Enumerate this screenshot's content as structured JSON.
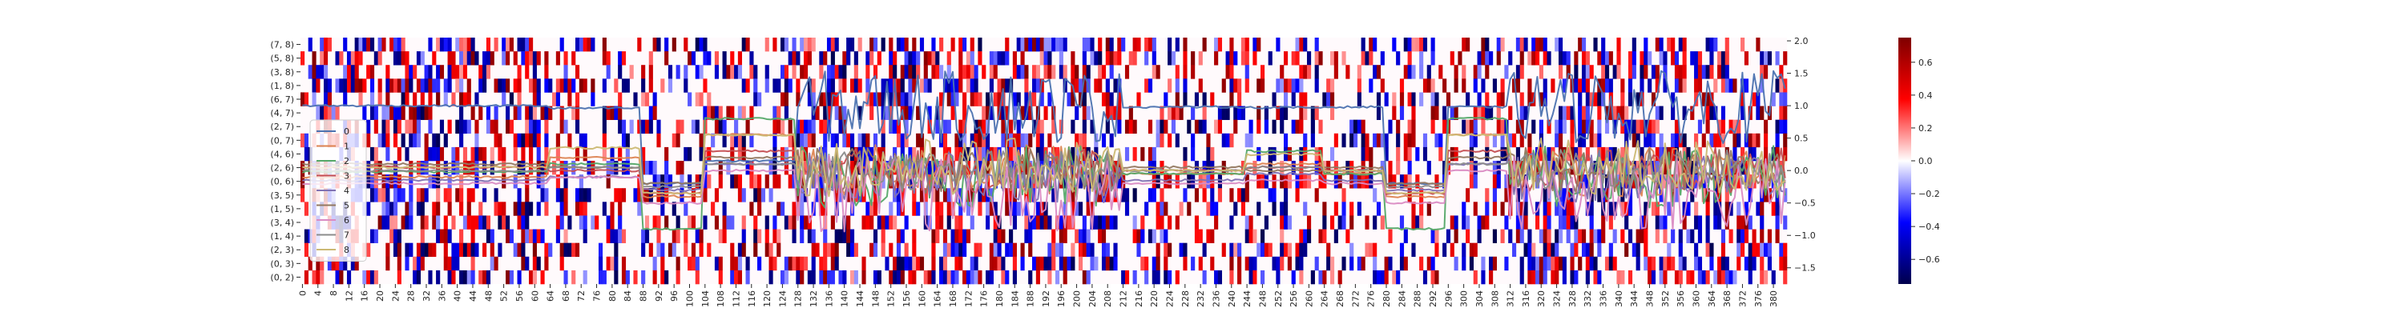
{
  "chart_data": {
    "type": "heatmap",
    "title": "",
    "xlabel": "",
    "ylabel": "",
    "heatmap": {
      "rows": [
        "(7, 8)",
        "(5, 8)",
        "(3, 8)",
        "(1, 8)",
        "(6, 7)",
        "(4, 7)",
        "(2, 7)",
        "(0, 7)",
        "(4, 6)",
        "(2, 6)",
        "(0, 6)",
        "(3, 5)",
        "(1, 5)",
        "(3, 4)",
        "(1, 4)",
        "(2, 3)",
        "(0, 3)",
        "(0, 2)"
      ],
      "columns": {
        "start": 0,
        "end": 383,
        "label_step": 4
      },
      "column_labels": [
        "0",
        "4",
        "8",
        "12",
        "16",
        "20",
        "24",
        "28",
        "32",
        "36",
        "40",
        "44",
        "48",
        "52",
        "56",
        "60",
        "64",
        "68",
        "72",
        "76",
        "80",
        "84",
        "88",
        "92",
        "96",
        "100",
        "104",
        "108",
        "112",
        "116",
        "120",
        "124",
        "128",
        "132",
        "136",
        "140",
        "144",
        "148",
        "152",
        "156",
        "160",
        "164",
        "168",
        "172",
        "176",
        "180",
        "184",
        "188",
        "192",
        "196",
        "200",
        "204",
        "208",
        "212",
        "216",
        "220",
        "224",
        "228",
        "232",
        "236",
        "240",
        "244",
        "248",
        "252",
        "256",
        "260",
        "264",
        "268",
        "272",
        "276",
        "280",
        "284",
        "288",
        "292",
        "296",
        "300",
        "304",
        "308",
        "312",
        "316",
        "320",
        "324",
        "328",
        "332",
        "336",
        "340",
        "344",
        "348",
        "352",
        "356",
        "360",
        "364",
        "368",
        "372",
        "376",
        "380"
      ],
      "color_range": [
        -0.75,
        0.75
      ],
      "colormap": "seismic",
      "sparsity": "most cells near 0 (white); scattered cells with |value| 0.2-0.75",
      "seed": 7
    },
    "colorbar": {
      "ticks": [
        "0.6",
        "0.4",
        "0.2",
        "0.0",
        "−0.2",
        "−0.4",
        "−0.6"
      ],
      "tick_values": [
        0.6,
        0.4,
        0.2,
        0.0,
        -0.2,
        -0.4,
        -0.6
      ]
    },
    "overlay": {
      "type": "line",
      "x_range": [
        0,
        383
      ],
      "y_ticks": [
        "2.0",
        "1.5",
        "1.0",
        "0.5",
        "0.0",
        "−0.5",
        "−1.0",
        "−1.5"
      ],
      "y_tick_values": [
        2.0,
        1.5,
        1.0,
        0.5,
        0.0,
        -0.5,
        -1.0,
        -1.5
      ],
      "ylim": [
        -1.75,
        2.05
      ],
      "segment_boundaries": [
        0,
        64,
        88,
        104,
        128,
        212,
        244,
        264,
        280,
        296,
        312,
        384
      ],
      "series": [
        {
          "name": "0",
          "color": "#4c72b0",
          "segment_levels": [
            1.0,
            0.96,
            -0.2,
            0.15,
            0.98,
            0.98,
            0.97,
            0.98,
            -0.2,
            0.98,
            0.98
          ],
          "noise": [
            0.01,
            0.01,
            0.01,
            0.01,
            0.35,
            0.01,
            0.01,
            0.01,
            0.01,
            0.01,
            0.35
          ]
        },
        {
          "name": "1",
          "color": "#dd8452",
          "segment_levels": [
            -0.1,
            0.2,
            -0.4,
            0.55,
            0.0,
            -0.05,
            0.1,
            -0.05,
            -0.4,
            0.55,
            0.0
          ],
          "noise": [
            0.01,
            0.01,
            0.01,
            0.01,
            0.25,
            0.01,
            0.01,
            0.01,
            0.01,
            0.01,
            0.25
          ]
        },
        {
          "name": "2",
          "color": "#55a868",
          "segment_levels": [
            -0.02,
            0.1,
            -0.9,
            0.8,
            -0.1,
            -0.05,
            0.3,
            -0.05,
            -0.9,
            0.8,
            -0.1
          ],
          "noise": [
            0.01,
            0.01,
            0.01,
            0.01,
            0.3,
            0.01,
            0.01,
            0.01,
            0.01,
            0.01,
            0.3
          ]
        },
        {
          "name": "3",
          "color": "#c44e52",
          "segment_levels": [
            0.05,
            0.0,
            -0.35,
            0.3,
            0.0,
            0.0,
            0.05,
            0.0,
            -0.35,
            0.3,
            0.0
          ],
          "noise": [
            0.01,
            0.01,
            0.01,
            0.01,
            0.22,
            0.01,
            0.01,
            0.01,
            0.01,
            0.01,
            0.22
          ]
        },
        {
          "name": "4",
          "color": "#8172b3",
          "segment_levels": [
            -0.15,
            -0.1,
            -0.3,
            0.1,
            -0.1,
            -0.15,
            -0.05,
            -0.15,
            -0.3,
            0.1,
            -0.1
          ],
          "noise": [
            0.01,
            0.01,
            0.01,
            0.01,
            0.25,
            0.01,
            0.01,
            0.01,
            0.01,
            0.01,
            0.25
          ]
        },
        {
          "name": "5",
          "color": "#937860",
          "segment_levels": [
            0.1,
            0.05,
            -0.2,
            0.2,
            0.0,
            0.05,
            0.0,
            0.05,
            -0.2,
            0.2,
            0.0
          ],
          "noise": [
            0.01,
            0.01,
            0.01,
            0.01,
            0.22,
            0.01,
            0.01,
            0.01,
            0.01,
            0.01,
            0.22
          ]
        },
        {
          "name": "6",
          "color": "#da8bc3",
          "segment_levels": [
            -0.2,
            -0.1,
            -0.5,
            0.0,
            -0.35,
            -0.2,
            -0.15,
            -0.2,
            -0.5,
            0.0,
            -0.35
          ],
          "noise": [
            0.01,
            0.01,
            0.01,
            0.01,
            0.38,
            0.01,
            0.01,
            0.01,
            0.01,
            0.01,
            0.38
          ]
        },
        {
          "name": "7",
          "color": "#8c8c8c",
          "segment_levels": [
            0.0,
            0.05,
            -0.25,
            0.1,
            0.0,
            0.0,
            0.05,
            0.0,
            -0.25,
            0.1,
            0.0
          ],
          "noise": [
            0.01,
            0.01,
            0.01,
            0.01,
            0.2,
            0.01,
            0.01,
            0.01,
            0.01,
            0.01,
            0.2
          ]
        },
        {
          "name": "8",
          "color": "#ccb974",
          "segment_levels": [
            0.05,
            0.35,
            -0.35,
            0.55,
            0.05,
            0.0,
            0.25,
            0.0,
            -0.35,
            0.55,
            0.05
          ],
          "noise": [
            0.01,
            0.01,
            0.01,
            0.01,
            0.28,
            0.01,
            0.01,
            0.01,
            0.01,
            0.01,
            0.28
          ]
        }
      ]
    },
    "legend": {
      "placement": "lower-left",
      "entries": [
        "0",
        "1",
        "2",
        "3",
        "4",
        "5",
        "6",
        "7",
        "8"
      ]
    },
    "grid": false
  }
}
